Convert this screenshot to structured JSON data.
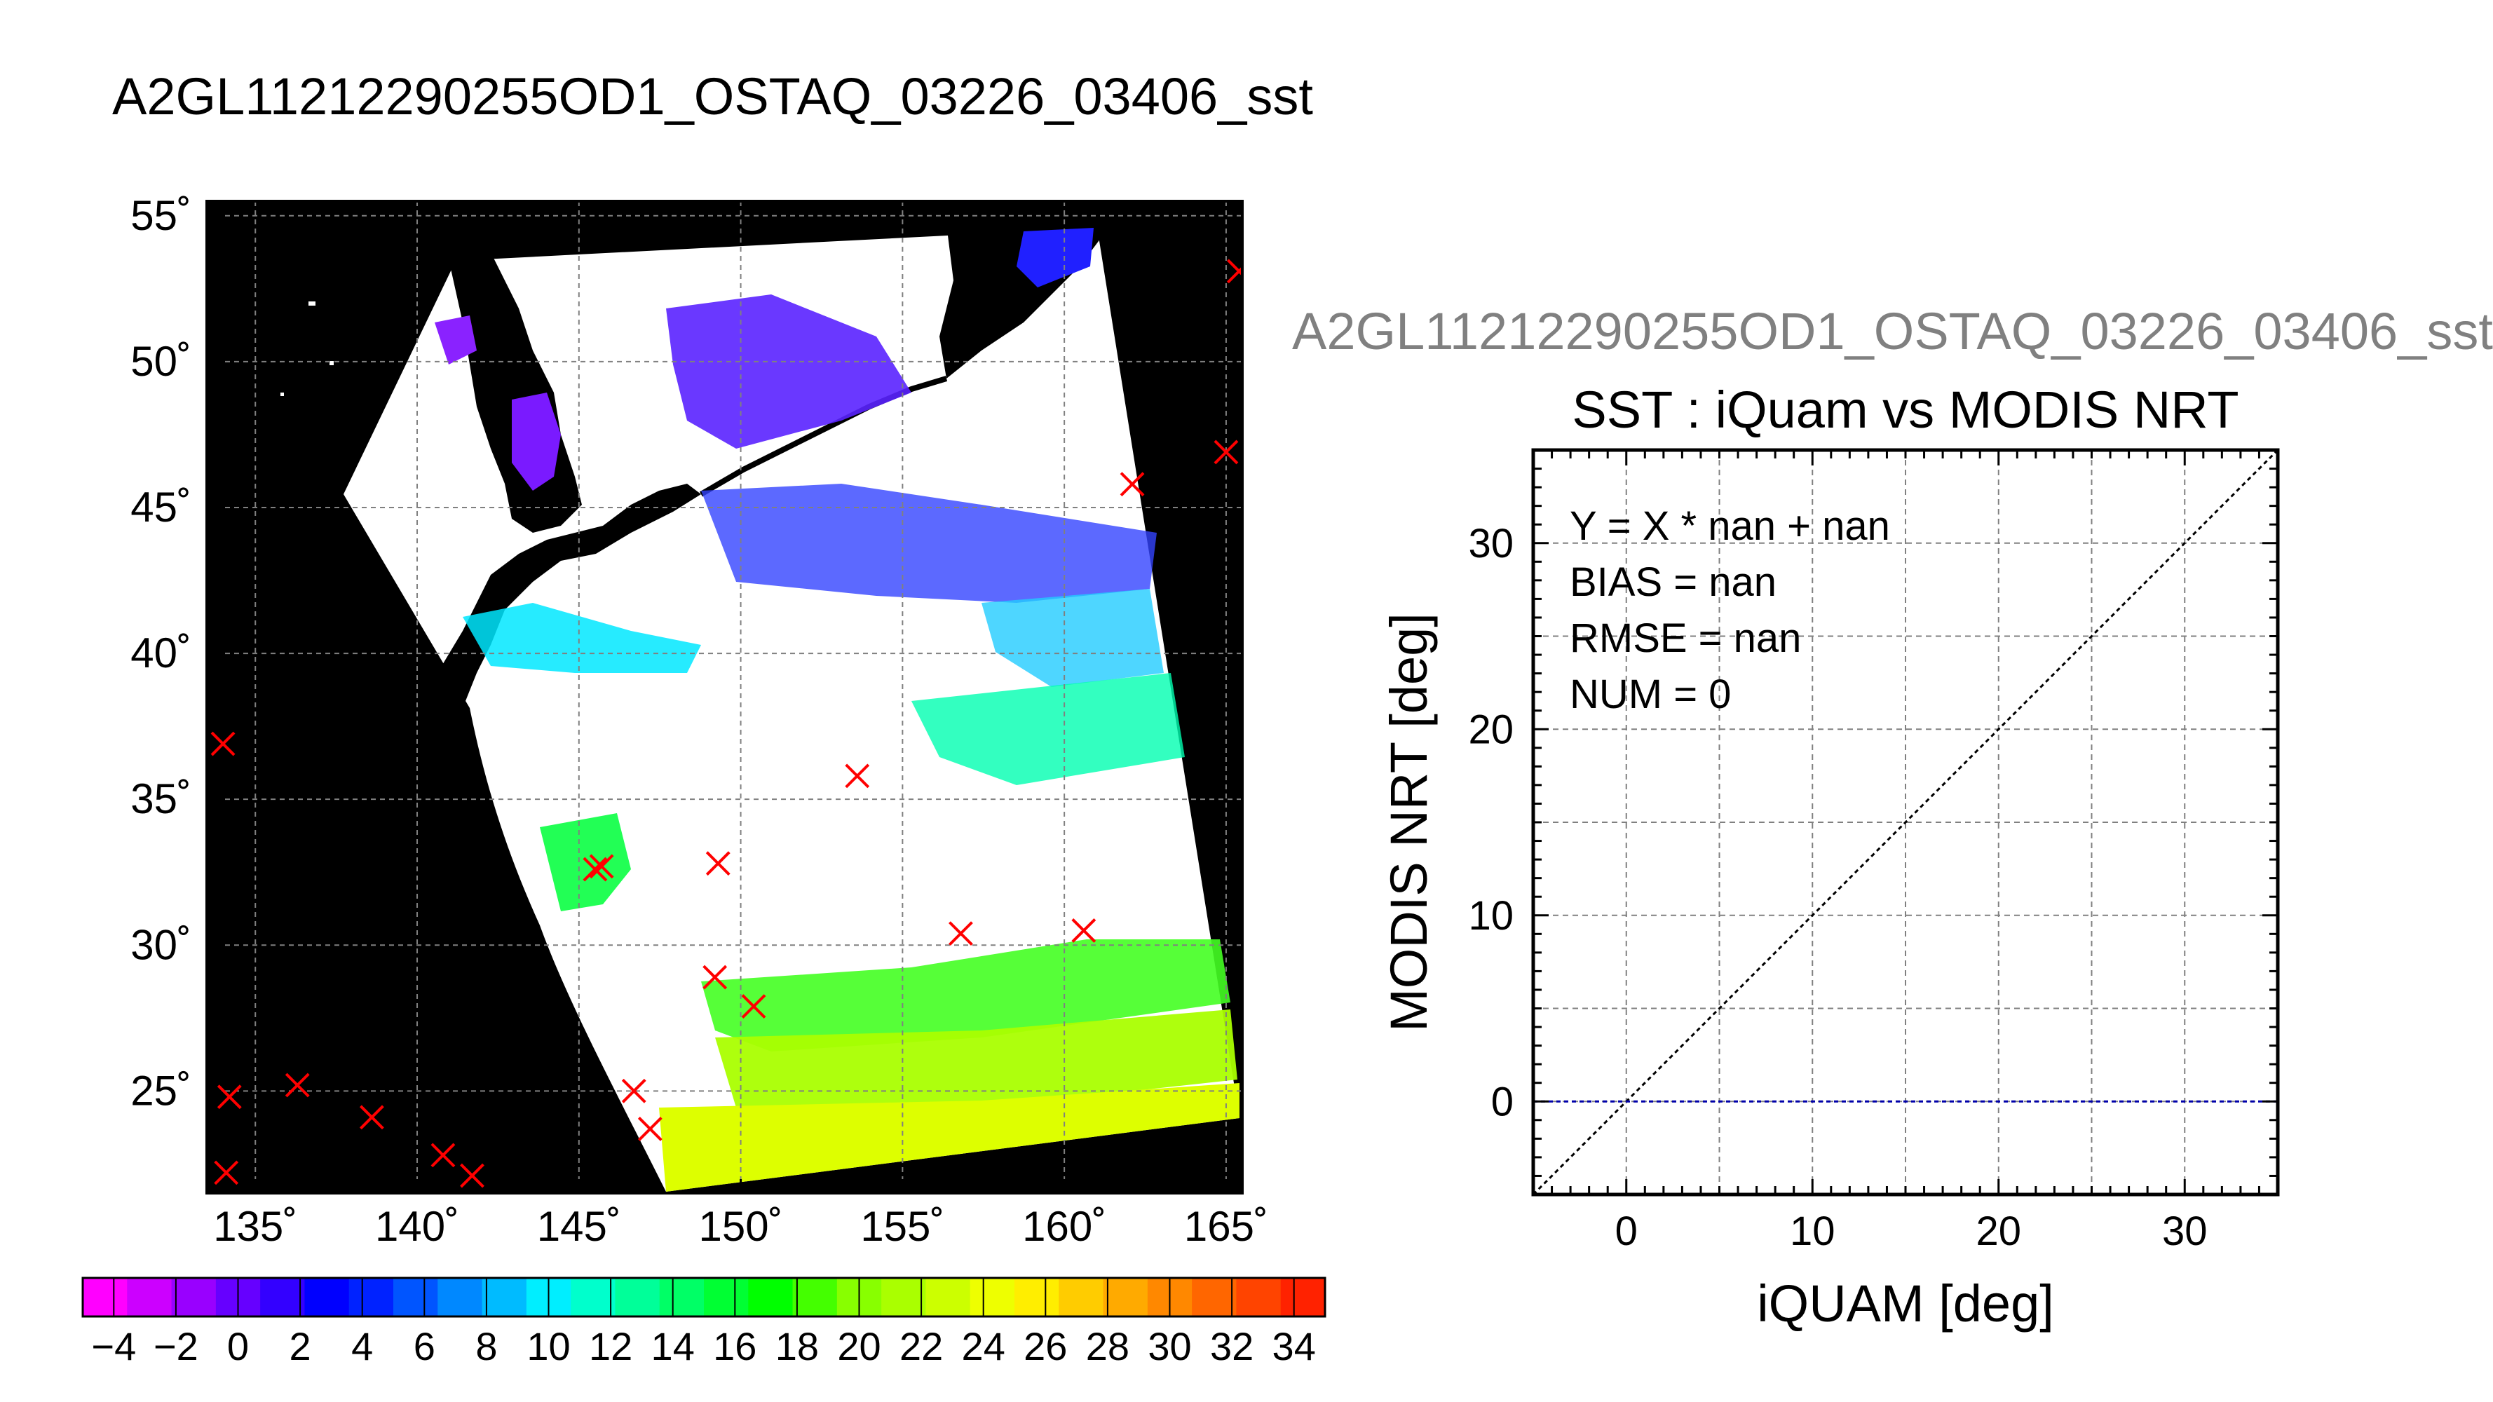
{
  "title": "A2GL11212290255OD1_OSTAQ_03226_03406_sst",
  "side_title": "A2GL11212290255OD1_OSTAQ_03226_03406_sst",
  "colors": {
    "map_background": "#000000",
    "swath_cloud": "#ffffff",
    "marker": "#ff0000",
    "grid": "#808080",
    "one_to_one_line": "#000000",
    "zero_line": "#0000aa"
  },
  "chart_data": [
    {
      "type": "map",
      "xlim": [
        133.5,
        165.5
      ],
      "ylim": [
        21.5,
        55.5
      ],
      "x_ticks": [
        135,
        140,
        145,
        150,
        155,
        160,
        165
      ],
      "x_tick_labels": [
        "135˚",
        "140˚",
        "145˚",
        "150˚",
        "155˚",
        "160˚",
        "165˚"
      ],
      "y_ticks": [
        25,
        30,
        35,
        40,
        45,
        50,
        55
      ],
      "y_tick_labels": [
        "25˚",
        "30˚",
        "35˚",
        "40˚",
        "45˚",
        "50˚",
        "55˚"
      ],
      "grid": true,
      "markers": [
        {
          "lon": 134.0,
          "lat": 36.9
        },
        {
          "lon": 134.2,
          "lat": 24.8
        },
        {
          "lon": 134.1,
          "lat": 22.2
        },
        {
          "lon": 136.3,
          "lat": 25.2
        },
        {
          "lon": 138.6,
          "lat": 24.1
        },
        {
          "lon": 140.8,
          "lat": 22.8
        },
        {
          "lon": 141.7,
          "lat": 22.1
        },
        {
          "lon": 145.5,
          "lat": 32.6
        },
        {
          "lon": 145.7,
          "lat": 32.7
        },
        {
          "lon": 146.7,
          "lat": 25.0
        },
        {
          "lon": 147.2,
          "lat": 23.7
        },
        {
          "lon": 149.3,
          "lat": 32.8
        },
        {
          "lon": 149.2,
          "lat": 28.9
        },
        {
          "lon": 150.4,
          "lat": 27.9
        },
        {
          "lon": 153.6,
          "lat": 35.8
        },
        {
          "lon": 156.8,
          "lat": 30.4
        },
        {
          "lon": 160.6,
          "lat": 30.5
        },
        {
          "lon": 162.1,
          "lat": 45.8
        },
        {
          "lon": 165.0,
          "lat": 46.9
        },
        {
          "lon": 165.4,
          "lat": 53.1
        }
      ]
    },
    {
      "type": "scatter",
      "title": "SST : iQuam vs MODIS NRT",
      "xlabel": "iQUAM [deg]",
      "ylabel": "MODIS NRT [deg]",
      "xlim": [
        -5,
        35
      ],
      "ylim": [
        -5,
        35
      ],
      "x_ticks": [
        0,
        10,
        20,
        30
      ],
      "x_tick_labels": [
        "0",
        "10",
        "20",
        "30"
      ],
      "y_ticks": [
        0,
        10,
        20,
        30
      ],
      "y_tick_labels": [
        "0",
        "10",
        "20",
        "30"
      ],
      "grid": true,
      "points": [],
      "one_to_one_line": true,
      "zero_line_y": 0,
      "annotations": [
        "Y = X * nan + nan",
        "BIAS = nan",
        "RMSE = nan",
        "NUM = 0"
      ]
    },
    {
      "type": "colorbar",
      "range": [
        -5,
        35
      ],
      "tick_labels": [
        "−4",
        "−2",
        "0",
        "2",
        "4",
        "6",
        "8",
        "10",
        "12",
        "14",
        "16",
        "18",
        "20",
        "22",
        "24",
        "26",
        "28",
        "30",
        "32",
        "34"
      ],
      "colors": [
        "#ff00ff",
        "#cc00ff",
        "#9900ff",
        "#6600ff",
        "#3300ff",
        "#0000ff",
        "#0022ff",
        "#0055ff",
        "#0088ff",
        "#00bbff",
        "#00eeff",
        "#00ffcc",
        "#00ff99",
        "#00ff66",
        "#00ff33",
        "#00ff00",
        "#44ff00",
        "#88ff00",
        "#aaff00",
        "#ccff00",
        "#eeff00",
        "#ffee00",
        "#ffcc00",
        "#ffaa00",
        "#ff8800",
        "#ff6600",
        "#ff4400",
        "#ff2200"
      ]
    }
  ]
}
